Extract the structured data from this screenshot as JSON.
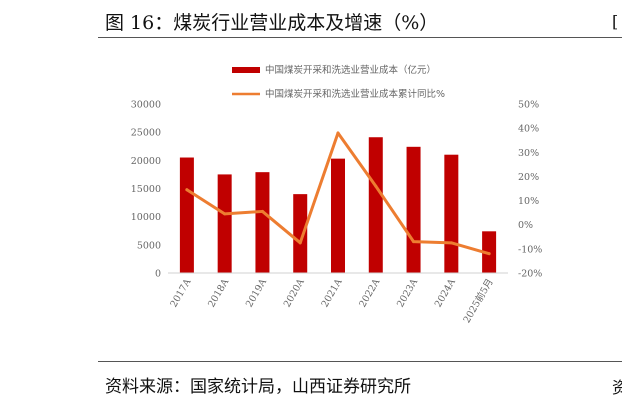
{
  "title": "图 16：煤炭行业营业成本及增速（%）",
  "source": "资料来源：国家统计局，山西证券研究所",
  "edge_top_glyph": "[",
  "edge_bottom_glyph": "资",
  "chart_data": {
    "type": "bar",
    "categories": [
      "2017A",
      "2018A",
      "2019A",
      "2020A",
      "2021A",
      "2022A",
      "2023A",
      "2024A",
      "2025前5月"
    ],
    "series": [
      {
        "name": "中国煤炭开采和洗选业营业成本（亿元）",
        "type": "bar",
        "axis": "left",
        "color": "#C00000",
        "values": [
          20500,
          17500,
          17900,
          14000,
          20300,
          24100,
          22400,
          21000,
          7400
        ]
      },
      {
        "name": "中国煤炭开采和洗选业营业成本累计同比%",
        "type": "line",
        "axis": "right",
        "color": "#ED7D31",
        "values": [
          14.5,
          4.5,
          5.5,
          -7.5,
          38,
          16,
          -7,
          -7.5,
          -12
        ]
      }
    ],
    "y_left": {
      "min": 0,
      "max": 30000,
      "ticks": [
        "0",
        "5000",
        "10000",
        "15000",
        "20000",
        "25000",
        "30000"
      ]
    },
    "y_right": {
      "min": -20,
      "max": 50,
      "ticks": [
        "-20%",
        "-10%",
        "0%",
        "10%",
        "20%",
        "30%",
        "40%",
        "50%"
      ]
    },
    "legend_position": "top",
    "grid": false
  }
}
